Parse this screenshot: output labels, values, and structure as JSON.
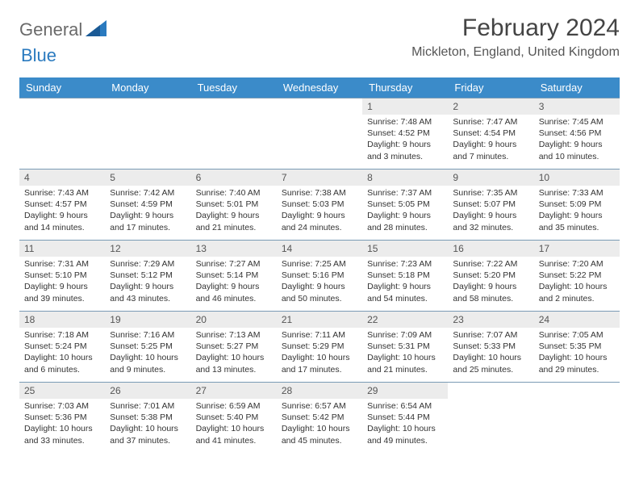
{
  "brand": {
    "part1": "General",
    "part2": "Blue"
  },
  "title": "February 2024",
  "location": "Mickleton, England, United Kingdom",
  "colors": {
    "header_bg": "#3b8bc9",
    "header_text": "#ffffff",
    "daynum_bg": "#ececec",
    "border": "#7a9bb5",
    "brand_gray": "#6a6a6a",
    "brand_blue": "#2a7abf"
  },
  "weekdays": [
    "Sunday",
    "Monday",
    "Tuesday",
    "Wednesday",
    "Thursday",
    "Friday",
    "Saturday"
  ],
  "weeks": [
    [
      null,
      null,
      null,
      null,
      {
        "n": "1",
        "sr": "Sunrise: 7:48 AM",
        "ss": "Sunset: 4:52 PM",
        "d1": "Daylight: 9 hours",
        "d2": "and 3 minutes."
      },
      {
        "n": "2",
        "sr": "Sunrise: 7:47 AM",
        "ss": "Sunset: 4:54 PM",
        "d1": "Daylight: 9 hours",
        "d2": "and 7 minutes."
      },
      {
        "n": "3",
        "sr": "Sunrise: 7:45 AM",
        "ss": "Sunset: 4:56 PM",
        "d1": "Daylight: 9 hours",
        "d2": "and 10 minutes."
      }
    ],
    [
      {
        "n": "4",
        "sr": "Sunrise: 7:43 AM",
        "ss": "Sunset: 4:57 PM",
        "d1": "Daylight: 9 hours",
        "d2": "and 14 minutes."
      },
      {
        "n": "5",
        "sr": "Sunrise: 7:42 AM",
        "ss": "Sunset: 4:59 PM",
        "d1": "Daylight: 9 hours",
        "d2": "and 17 minutes."
      },
      {
        "n": "6",
        "sr": "Sunrise: 7:40 AM",
        "ss": "Sunset: 5:01 PM",
        "d1": "Daylight: 9 hours",
        "d2": "and 21 minutes."
      },
      {
        "n": "7",
        "sr": "Sunrise: 7:38 AM",
        "ss": "Sunset: 5:03 PM",
        "d1": "Daylight: 9 hours",
        "d2": "and 24 minutes."
      },
      {
        "n": "8",
        "sr": "Sunrise: 7:37 AM",
        "ss": "Sunset: 5:05 PM",
        "d1": "Daylight: 9 hours",
        "d2": "and 28 minutes."
      },
      {
        "n": "9",
        "sr": "Sunrise: 7:35 AM",
        "ss": "Sunset: 5:07 PM",
        "d1": "Daylight: 9 hours",
        "d2": "and 32 minutes."
      },
      {
        "n": "10",
        "sr": "Sunrise: 7:33 AM",
        "ss": "Sunset: 5:09 PM",
        "d1": "Daylight: 9 hours",
        "d2": "and 35 minutes."
      }
    ],
    [
      {
        "n": "11",
        "sr": "Sunrise: 7:31 AM",
        "ss": "Sunset: 5:10 PM",
        "d1": "Daylight: 9 hours",
        "d2": "and 39 minutes."
      },
      {
        "n": "12",
        "sr": "Sunrise: 7:29 AM",
        "ss": "Sunset: 5:12 PM",
        "d1": "Daylight: 9 hours",
        "d2": "and 43 minutes."
      },
      {
        "n": "13",
        "sr": "Sunrise: 7:27 AM",
        "ss": "Sunset: 5:14 PM",
        "d1": "Daylight: 9 hours",
        "d2": "and 46 minutes."
      },
      {
        "n": "14",
        "sr": "Sunrise: 7:25 AM",
        "ss": "Sunset: 5:16 PM",
        "d1": "Daylight: 9 hours",
        "d2": "and 50 minutes."
      },
      {
        "n": "15",
        "sr": "Sunrise: 7:23 AM",
        "ss": "Sunset: 5:18 PM",
        "d1": "Daylight: 9 hours",
        "d2": "and 54 minutes."
      },
      {
        "n": "16",
        "sr": "Sunrise: 7:22 AM",
        "ss": "Sunset: 5:20 PM",
        "d1": "Daylight: 9 hours",
        "d2": "and 58 minutes."
      },
      {
        "n": "17",
        "sr": "Sunrise: 7:20 AM",
        "ss": "Sunset: 5:22 PM",
        "d1": "Daylight: 10 hours",
        "d2": "and 2 minutes."
      }
    ],
    [
      {
        "n": "18",
        "sr": "Sunrise: 7:18 AM",
        "ss": "Sunset: 5:24 PM",
        "d1": "Daylight: 10 hours",
        "d2": "and 6 minutes."
      },
      {
        "n": "19",
        "sr": "Sunrise: 7:16 AM",
        "ss": "Sunset: 5:25 PM",
        "d1": "Daylight: 10 hours",
        "d2": "and 9 minutes."
      },
      {
        "n": "20",
        "sr": "Sunrise: 7:13 AM",
        "ss": "Sunset: 5:27 PM",
        "d1": "Daylight: 10 hours",
        "d2": "and 13 minutes."
      },
      {
        "n": "21",
        "sr": "Sunrise: 7:11 AM",
        "ss": "Sunset: 5:29 PM",
        "d1": "Daylight: 10 hours",
        "d2": "and 17 minutes."
      },
      {
        "n": "22",
        "sr": "Sunrise: 7:09 AM",
        "ss": "Sunset: 5:31 PM",
        "d1": "Daylight: 10 hours",
        "d2": "and 21 minutes."
      },
      {
        "n": "23",
        "sr": "Sunrise: 7:07 AM",
        "ss": "Sunset: 5:33 PM",
        "d1": "Daylight: 10 hours",
        "d2": "and 25 minutes."
      },
      {
        "n": "24",
        "sr": "Sunrise: 7:05 AM",
        "ss": "Sunset: 5:35 PM",
        "d1": "Daylight: 10 hours",
        "d2": "and 29 minutes."
      }
    ],
    [
      {
        "n": "25",
        "sr": "Sunrise: 7:03 AM",
        "ss": "Sunset: 5:36 PM",
        "d1": "Daylight: 10 hours",
        "d2": "and 33 minutes."
      },
      {
        "n": "26",
        "sr": "Sunrise: 7:01 AM",
        "ss": "Sunset: 5:38 PM",
        "d1": "Daylight: 10 hours",
        "d2": "and 37 minutes."
      },
      {
        "n": "27",
        "sr": "Sunrise: 6:59 AM",
        "ss": "Sunset: 5:40 PM",
        "d1": "Daylight: 10 hours",
        "d2": "and 41 minutes."
      },
      {
        "n": "28",
        "sr": "Sunrise: 6:57 AM",
        "ss": "Sunset: 5:42 PM",
        "d1": "Daylight: 10 hours",
        "d2": "and 45 minutes."
      },
      {
        "n": "29",
        "sr": "Sunrise: 6:54 AM",
        "ss": "Sunset: 5:44 PM",
        "d1": "Daylight: 10 hours",
        "d2": "and 49 minutes."
      },
      null,
      null
    ]
  ]
}
